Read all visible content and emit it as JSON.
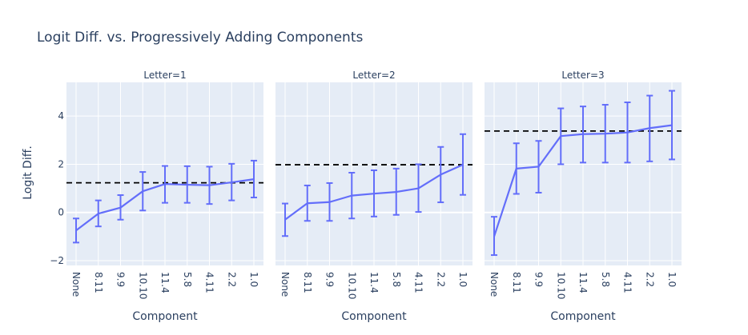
{
  "colors": {
    "panel_bg": "#e5ecf6",
    "grid": "#ffffff",
    "series": "#636efa",
    "baseline": "#000000",
    "text": "#2a3f5f"
  },
  "chart_data": {
    "type": "line",
    "title": "Logit Diff. vs. Progressively Adding Components",
    "ylabel": "Logit Diff.",
    "xlabel": "Component",
    "ylim": [
      -2.2,
      5.4
    ],
    "yticks": [
      -2,
      0,
      2,
      4
    ],
    "grid": true,
    "categories": [
      "None",
      "8.11",
      "9.9",
      "10.10",
      "11.4",
      "5.8",
      "4.11",
      "2.2",
      "1.0"
    ],
    "panels": [
      {
        "label": "Letter=1",
        "values": [
          -0.75,
          -0.05,
          0.2,
          0.88,
          1.18,
          1.15,
          1.13,
          1.25,
          1.38
        ],
        "err_low": [
          -1.25,
          -0.58,
          -0.3,
          0.08,
          0.4,
          0.4,
          0.35,
          0.5,
          0.62
        ],
        "err_high": [
          -0.25,
          0.5,
          0.72,
          1.68,
          1.93,
          1.92,
          1.9,
          2.02,
          2.15
        ],
        "baseline": 1.23
      },
      {
        "label": "Letter=2",
        "values": [
          -0.3,
          0.38,
          0.43,
          0.7,
          0.78,
          0.85,
          1.0,
          1.57,
          1.98
        ],
        "err_low": [
          -0.98,
          -0.35,
          -0.35,
          -0.25,
          -0.17,
          -0.1,
          0.02,
          0.42,
          0.73
        ],
        "err_high": [
          0.37,
          1.12,
          1.22,
          1.65,
          1.75,
          1.82,
          2.0,
          2.72,
          3.25
        ],
        "baseline": 1.98
      },
      {
        "label": "Letter=3",
        "values": [
          -1.0,
          1.82,
          1.9,
          3.17,
          3.25,
          3.27,
          3.32,
          3.5,
          3.62
        ],
        "err_low": [
          -1.77,
          0.77,
          0.82,
          2.0,
          2.07,
          2.07,
          2.07,
          2.12,
          2.2
        ],
        "err_high": [
          -0.18,
          2.87,
          2.97,
          4.32,
          4.4,
          4.47,
          4.57,
          4.85,
          5.05
        ],
        "baseline": 3.38
      }
    ]
  }
}
